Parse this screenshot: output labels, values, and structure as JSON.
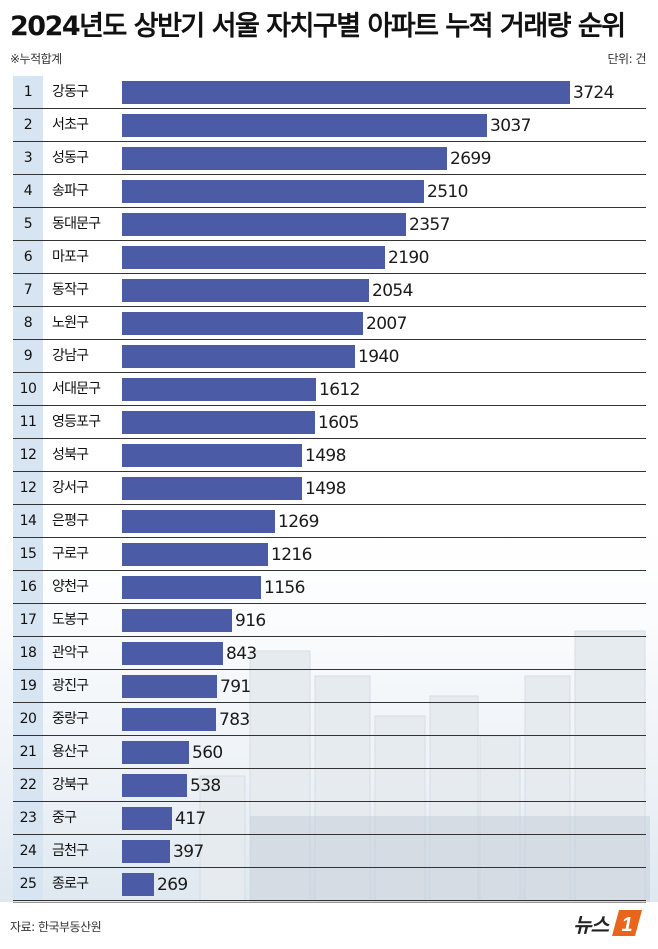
{
  "title": "2024년도 상반기 서울 자치구별 아파트 누적 거래량 순위",
  "note": "※누적합계",
  "unit": "단위: 건",
  "source": "자료: 한국부동산원",
  "logo": {
    "text": "뉴스",
    "mark": "1"
  },
  "colors": {
    "bar": "#4b5ba6",
    "rank_col": "#d7e5f2",
    "logo_accent": "#e8661c"
  },
  "chart_data": {
    "type": "bar",
    "orientation": "horizontal",
    "title": "2024년도 상반기 서울 자치구별 아파트 누적 거래량 순위",
    "unit": "건",
    "xlim": [
      0,
      3724
    ],
    "grid": false,
    "legend": "none",
    "ranks": [
      "1",
      "2",
      "3",
      "4",
      "5",
      "6",
      "7",
      "8",
      "9",
      "10",
      "11",
      "12",
      "12",
      "14",
      "15",
      "16",
      "17",
      "18",
      "19",
      "20",
      "21",
      "22",
      "23",
      "24",
      "25"
    ],
    "categories": [
      "강동구",
      "서초구",
      "성동구",
      "송파구",
      "동대문구",
      "마포구",
      "동작구",
      "노원구",
      "강남구",
      "서대문구",
      "영등포구",
      "성북구",
      "강서구",
      "은평구",
      "구로구",
      "양천구",
      "도봉구",
      "관악구",
      "광진구",
      "중랑구",
      "용산구",
      "강북구",
      "중구",
      "금천구",
      "종로구"
    ],
    "values": [
      3724,
      3037,
      2699,
      2510,
      2357,
      2190,
      2054,
      2007,
      1940,
      1612,
      1605,
      1498,
      1498,
      1269,
      1216,
      1156,
      916,
      843,
      791,
      783,
      560,
      538,
      417,
      397,
      269
    ]
  }
}
